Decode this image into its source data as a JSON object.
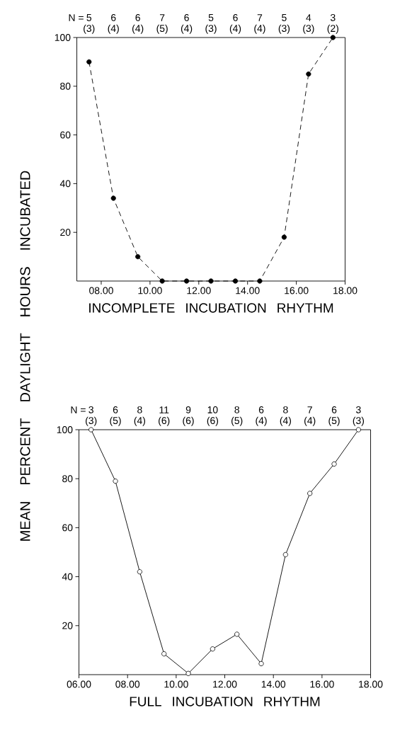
{
  "chart_data": [
    {
      "type": "line",
      "xlabel": "INCOMPLETE INCUBATION RHYTHM",
      "ylabel": "MEAN PERCENT DAYLIGHT HOURS INCUBATED",
      "x": [
        7.5,
        8.5,
        9.5,
        10.5,
        11.5,
        12.5,
        13.5,
        14.5,
        15.5,
        16.5,
        17.5
      ],
      "series": [
        {
          "color": "#000000",
          "values": [
            90,
            34,
            10,
            0,
            0,
            0,
            0,
            0,
            18,
            85,
            100
          ]
        }
      ],
      "xlim": [
        7,
        18
      ],
      "ylim": [
        0,
        100
      ],
      "xticks": [
        {
          "value": 8,
          "label": "08.00"
        },
        {
          "value": 10,
          "label": "10.00"
        },
        {
          "value": 12,
          "label": "12.00"
        },
        {
          "value": 14,
          "label": "14.00"
        },
        {
          "value": 16,
          "label": "16.00"
        },
        {
          "value": 18,
          "label": "18.00"
        }
      ],
      "yticks": [
        20,
        40,
        60,
        80,
        100
      ],
      "marker": "circle",
      "line_style": "dashed",
      "annotations": [
        "N =",
        "5",
        "(3)",
        "6",
        "(4)",
        "6",
        "(4)",
        "7",
        "(5)",
        "6",
        "(4)",
        "5",
        "(3)",
        "6",
        "(4)",
        "7",
        "(4)",
        "5",
        "(3)",
        "4",
        "(3)",
        "3",
        "(2)"
      ]
    },
    {
      "type": "line",
      "xlabel": "FULL INCUBATION RHYTHM",
      "x": [
        6.5,
        7.5,
        8.5,
        9.5,
        10.5,
        11.5,
        12.5,
        13.5,
        14.5,
        15.5,
        16.5,
        17.5
      ],
      "series": [
        {
          "color": "#000000",
          "values": [
            100,
            79,
            42,
            8.5,
            0.5,
            10.5,
            16.5,
            4.5,
            49,
            74,
            86,
            100
          ]
        }
      ],
      "xlim": [
        6,
        18
      ],
      "ylim": [
        0,
        100
      ],
      "xticks": [
        {
          "value": 6,
          "label": "06.00"
        },
        {
          "value": 8,
          "label": "08.00"
        },
        {
          "value": 10,
          "label": "10.00"
        },
        {
          "value": 12,
          "label": "12.00"
        },
        {
          "value": 14,
          "label": "14.00"
        },
        {
          "value": 16,
          "label": "16.00"
        },
        {
          "value": 18,
          "label": "18.00"
        }
      ],
      "yticks": [
        20,
        40,
        60,
        80,
        100
      ],
      "marker": "circle",
      "line_style": "solid",
      "annotations": [
        "N =",
        "3",
        "(3)",
        "6",
        "(5)",
        "8",
        "(4)",
        "11",
        "(6)",
        "9",
        "(6)",
        "10",
        "(6)",
        "8",
        "(5)",
        "6",
        "(4)",
        "8",
        "(4)",
        "7",
        "(4)",
        "6",
        "(5)",
        "3",
        "(3)"
      ]
    }
  ]
}
